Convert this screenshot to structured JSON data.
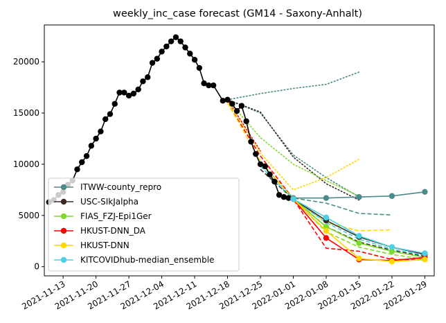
{
  "chart_data": {
    "type": "line",
    "title": "weekly_inc_case forecast (GM14 - Saxony-Anhalt)",
    "xlabel": "",
    "ylabel": "",
    "x_range": [
      "2021-11-09",
      "2022-01-31"
    ],
    "ylim": [
      -900,
      23600
    ],
    "x_ticks": [
      "2021-11-13",
      "2021-11-20",
      "2021-11-27",
      "2021-12-04",
      "2021-12-11",
      "2021-12-18",
      "2021-12-25",
      "2022-01-01",
      "2022-01-08",
      "2022-01-15",
      "2022-01-22",
      "2022-01-29"
    ],
    "y_ticks": [
      0,
      5000,
      10000,
      15000,
      20000
    ],
    "grid": false,
    "legend_position": "lower-left",
    "truth": {
      "color": "#000000",
      "points": [
        [
          "2021-11-10",
          6300
        ],
        [
          "2021-11-11",
          6500
        ],
        [
          "2021-11-12",
          7000
        ],
        [
          "2021-11-13",
          7300
        ],
        [
          "2021-11-14",
          8000
        ],
        [
          "2021-11-15",
          8400
        ],
        [
          "2021-11-16",
          9500
        ],
        [
          "2021-11-17",
          10200
        ],
        [
          "2021-11-18",
          10800
        ],
        [
          "2021-11-19",
          11800
        ],
        [
          "2021-11-20",
          12500
        ],
        [
          "2021-11-21",
          13200
        ],
        [
          "2021-11-22",
          14400
        ],
        [
          "2021-11-23",
          14900
        ],
        [
          "2021-11-24",
          15900
        ],
        [
          "2021-11-25",
          17000
        ],
        [
          "2021-11-26",
          17000
        ],
        [
          "2021-11-27",
          16700
        ],
        [
          "2021-11-28",
          16900
        ],
        [
          "2021-11-29",
          17300
        ],
        [
          "2021-11-30",
          18100
        ],
        [
          "2021-12-01",
          18500
        ],
        [
          "2021-12-02",
          19900
        ],
        [
          "2021-12-03",
          20300
        ],
        [
          "2021-12-04",
          21000
        ],
        [
          "2021-12-05",
          21500
        ],
        [
          "2021-12-06",
          22000
        ],
        [
          "2021-12-07",
          22400
        ],
        [
          "2021-12-08",
          22000
        ],
        [
          "2021-12-09",
          21400
        ],
        [
          "2021-12-10",
          20800
        ],
        [
          "2021-12-11",
          20200
        ],
        [
          "2021-12-12",
          19400
        ],
        [
          "2021-12-13",
          17900
        ],
        [
          "2021-12-14",
          17700
        ],
        [
          "2021-12-15",
          17700
        ],
        [
          "2021-12-17",
          16200
        ],
        [
          "2021-12-18",
          16300
        ],
        [
          "2021-12-19",
          15900
        ],
        [
          "2021-12-20",
          15200
        ],
        [
          "2021-12-21",
          15700
        ],
        [
          "2021-12-22",
          14200
        ],
        [
          "2021-12-23",
          12200
        ],
        [
          "2021-12-24",
          11000
        ],
        [
          "2021-12-25",
          10000
        ],
        [
          "2021-12-26",
          9800
        ],
        [
          "2021-12-27",
          9000
        ],
        [
          "2021-12-28",
          8300
        ],
        [
          "2021-12-29",
          7000
        ],
        [
          "2021-12-30",
          6800
        ],
        [
          "2021-12-31",
          6700
        ]
      ]
    },
    "series": [
      {
        "name": "ITWW-county_repro",
        "color": "#4c8a89",
        "marker": "circle",
        "values": [
          [
            "2022-01-01",
            6700
          ],
          [
            "2022-01-08",
            6700
          ],
          [
            "2022-01-15",
            6800
          ],
          [
            "2022-01-22",
            6900
          ],
          [
            "2022-01-29",
            7300
          ]
        ],
        "bands": [
          {
            "style": "dashed",
            "points": [
              [
                "2021-12-25",
                10200
              ],
              [
                "2022-01-01",
                6700
              ],
              [
                "2022-01-08",
                6200
              ],
              [
                "2022-01-15",
                5200
              ],
              [
                "2022-01-22",
                5050
              ]
            ]
          },
          {
            "style": "dotted",
            "points": [
              [
                "2021-12-18",
                16300
              ],
              [
                "2021-12-25",
                16900
              ],
              [
                "2022-01-01",
                17400
              ],
              [
                "2022-01-08",
                17800
              ],
              [
                "2022-01-15",
                19000
              ]
            ]
          },
          {
            "style": "dotted",
            "points": [
              [
                "2021-12-18",
                16300
              ],
              [
                "2021-12-25",
                15000
              ],
              [
                "2022-01-01",
                10900
              ],
              [
                "2022-01-08",
                8700
              ],
              [
                "2022-01-15",
                6800
              ]
            ]
          }
        ]
      },
      {
        "name": "USC-SIkJalpha",
        "color": "#3b2a26",
        "marker": "circle",
        "values": [
          [
            "2022-01-01",
            6600
          ],
          [
            "2022-01-08",
            4500
          ],
          [
            "2022-01-15",
            2900
          ],
          [
            "2022-01-22",
            1900
          ],
          [
            "2022-01-29",
            1200
          ]
        ],
        "bands": [
          {
            "style": "dashed",
            "points": [
              [
                "2021-12-25",
                9500
              ],
              [
                "2022-01-01",
                6600
              ],
              [
                "2022-01-08",
                3900
              ],
              [
                "2022-01-15",
                2400
              ],
              [
                "2022-01-22",
                1600
              ],
              [
                "2022-01-29",
                1000
              ]
            ]
          },
          {
            "style": "dotted",
            "points": [
              [
                "2021-12-18",
                16300
              ],
              [
                "2021-12-25",
                15100
              ],
              [
                "2022-01-01",
                10700
              ],
              [
                "2022-01-08",
                8100
              ],
              [
                "2022-01-15",
                6500
              ]
            ]
          }
        ]
      },
      {
        "name": "FIAS_FZJ-Epi1Ger",
        "color": "#7ddb2c",
        "marker": "circle",
        "values": [
          [
            "2022-01-01",
            6600
          ],
          [
            "2022-01-08",
            3900
          ],
          [
            "2022-01-15",
            2300
          ],
          [
            "2022-01-22",
            1500
          ],
          [
            "2022-01-29",
            900
          ]
        ],
        "bands": [
          {
            "style": "dashed",
            "points": [
              [
                "2021-12-25",
                10200
              ],
              [
                "2022-01-01",
                6600
              ],
              [
                "2022-01-08",
                3400
              ],
              [
                "2022-01-15",
                1900
              ],
              [
                "2022-01-22",
                1200
              ],
              [
                "2022-01-29",
                700
              ]
            ]
          },
          {
            "style": "dotted",
            "points": [
              [
                "2021-12-18",
                16300
              ],
              [
                "2021-12-25",
                12600
              ],
              [
                "2022-01-01",
                10000
              ],
              [
                "2022-01-08",
                8400
              ],
              [
                "2022-01-15",
                6900
              ]
            ]
          }
        ]
      },
      {
        "name": "HKUST-DNN_DA",
        "color": "#ff0000",
        "marker": "circle",
        "values": [
          [
            "2022-01-01",
            6600
          ],
          [
            "2022-01-08",
            2800
          ],
          [
            "2022-01-15",
            700
          ],
          [
            "2022-01-22",
            600
          ],
          [
            "2022-01-29",
            900
          ]
        ],
        "bands": [
          {
            "style": "dashed",
            "points": [
              [
                "2021-12-18",
                16000
              ],
              [
                "2021-12-25",
                10800
              ],
              [
                "2022-01-01",
                6600
              ],
              [
                "2022-01-08",
                1800
              ],
              [
                "2022-01-15",
                1500
              ],
              [
                "2022-01-22",
                700
              ],
              [
                "2022-01-29",
                700
              ]
            ]
          },
          {
            "style": "dotted",
            "points": [
              [
                "2021-12-18",
                16300
              ],
              [
                "2021-12-25",
                11300
              ]
            ]
          }
        ]
      },
      {
        "name": "HKUST-DNN",
        "color": "#ffd700",
        "marker": "circle",
        "values": [
          [
            "2022-01-01",
            6600
          ],
          [
            "2022-01-08",
            3500
          ],
          [
            "2022-01-15",
            800
          ],
          [
            "2022-01-22",
            500
          ],
          [
            "2022-01-29",
            700
          ]
        ],
        "bands": [
          {
            "style": "dashed",
            "points": [
              [
                "2021-12-18",
                16000
              ],
              [
                "2021-12-25",
                10300
              ],
              [
                "2022-01-01",
                6600
              ],
              [
                "2022-01-08",
                4300
              ],
              [
                "2022-01-15",
                3500
              ],
              [
                "2022-01-22",
                3600
              ]
            ]
          },
          {
            "style": "dotted",
            "points": [
              [
                "2021-12-18",
                16100
              ],
              [
                "2021-12-25",
                11100
              ],
              [
                "2022-01-01",
                7500
              ],
              [
                "2022-01-08",
                8700
              ],
              [
                "2022-01-15",
                10500
              ]
            ]
          }
        ]
      },
      {
        "name": "KITCOVIDhub-median_ensemble",
        "color": "#4dd0e1",
        "marker": "circle",
        "values": [
          [
            "2022-01-01",
            6600
          ],
          [
            "2022-01-08",
            4800
          ],
          [
            "2022-01-15",
            3000
          ],
          [
            "2022-01-22",
            1900
          ],
          [
            "2022-01-29",
            1300
          ]
        ],
        "bands": [
          {
            "style": "dashed",
            "points": [
              [
                "2021-12-25",
                9800
              ],
              [
                "2022-01-01",
                6600
              ],
              [
                "2022-01-08",
                4300
              ],
              [
                "2022-01-15",
                2700
              ],
              [
                "2022-01-22",
                1700
              ],
              [
                "2022-01-29",
                1100
              ]
            ]
          }
        ]
      }
    ]
  }
}
